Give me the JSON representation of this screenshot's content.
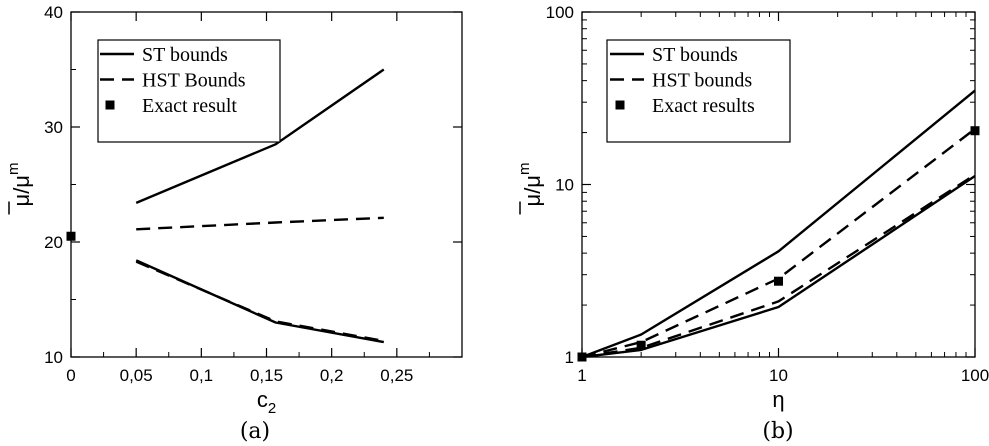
{
  "chart_data": [
    {
      "type": "line",
      "panel_label": "(a)",
      "xlabel_main": "c",
      "xlabel_sub": "2",
      "ylabel_main": "μ/μ",
      "ylabel_sup": "m",
      "xlim": [
        0,
        0.3
      ],
      "ylim": [
        10,
        40
      ],
      "x_ticks": [
        0,
        0.05,
        0.1,
        0.15,
        0.2,
        0.25
      ],
      "x_tick_labels": [
        "0",
        "0,05",
        "0,1",
        "0,15",
        "0,2",
        "0,25"
      ],
      "y_ticks": [
        10,
        20,
        30,
        40
      ],
      "y_tick_labels": [
        "10",
        "20",
        "30",
        "40"
      ],
      "legend": {
        "position": "top-left",
        "entries": [
          {
            "label": "ST bounds",
            "style": "solid"
          },
          {
            "label": "HST Bounds",
            "style": "dashed"
          },
          {
            "label": "Exact result",
            "style": "marker"
          }
        ]
      },
      "series": [
        {
          "style": "solid",
          "group": 0,
          "x": [
            0.05,
            0.157,
            0.24
          ],
          "y": [
            23.4,
            28.5,
            35.0
          ]
        },
        {
          "style": "solid",
          "group": 0,
          "x": [
            0.05,
            0.157,
            0.24
          ],
          "y": [
            18.4,
            13.0,
            11.3
          ]
        },
        {
          "style": "dashed",
          "group": 1,
          "x": [
            0.05,
            0.157,
            0.24
          ],
          "y": [
            21.1,
            21.7,
            22.1
          ]
        },
        {
          "style": "dashed",
          "group": 1,
          "x": [
            0.05,
            0.157,
            0.24
          ],
          "y": [
            18.3,
            13.1,
            11.4
          ]
        },
        {
          "style": "marker",
          "group": 2,
          "x": [
            0
          ],
          "y": [
            20.5
          ]
        }
      ]
    },
    {
      "type": "line",
      "panel_label": "(b)",
      "xlabel_main": "η",
      "ylabel_main": "μ/μ",
      "ylabel_sup": "m",
      "xscale": "log",
      "yscale": "log",
      "xlim": [
        1,
        100
      ],
      "ylim": [
        1,
        100
      ],
      "x_ticks": [
        1,
        10,
        100
      ],
      "x_tick_labels": [
        "1",
        "10",
        "100"
      ],
      "y_ticks": [
        1,
        10,
        100
      ],
      "y_tick_labels": [
        "1",
        "10",
        "100"
      ],
      "legend": {
        "position": "top-left",
        "entries": [
          {
            "label": "ST bounds",
            "style": "solid"
          },
          {
            "label": "HST bounds",
            "style": "dashed"
          },
          {
            "label": "Exact results",
            "style": "marker"
          }
        ]
      },
      "series": [
        {
          "style": "solid",
          "group": 0,
          "x": [
            1,
            2,
            10,
            100
          ],
          "y": [
            1,
            1.35,
            4.1,
            35
          ]
        },
        {
          "style": "solid",
          "group": 0,
          "x": [
            1,
            2,
            10,
            100
          ],
          "y": [
            1,
            1.1,
            1.95,
            11.2
          ]
        },
        {
          "style": "dashed",
          "group": 1,
          "x": [
            1,
            2,
            10,
            100
          ],
          "y": [
            1,
            1.22,
            2.85,
            21
          ]
        },
        {
          "style": "dashed",
          "group": 1,
          "x": [
            1,
            2,
            10,
            100
          ],
          "y": [
            1,
            1.13,
            2.1,
            11.4
          ]
        },
        {
          "style": "marker",
          "group": 2,
          "x": [
            1,
            2,
            10,
            100
          ],
          "y": [
            1,
            1.17,
            2.75,
            20.5
          ]
        }
      ]
    }
  ]
}
